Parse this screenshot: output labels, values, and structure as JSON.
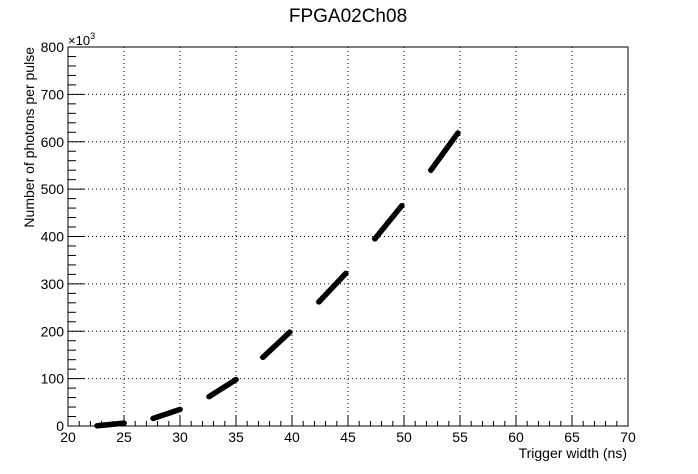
{
  "chart_data": {
    "type": "scatter",
    "title": "FPGA02Ch08",
    "xlabel": "Trigger width (ns)",
    "ylabel": "Number of photons per pulse",
    "y_multiplier_label": "×10",
    "y_multiplier_exp": "3",
    "xlim": [
      20,
      70
    ],
    "ylim": [
      0,
      800
    ],
    "x_ticks": [
      20,
      25,
      30,
      35,
      40,
      45,
      50,
      55,
      60,
      65,
      70
    ],
    "y_ticks": [
      0,
      100,
      200,
      300,
      400,
      500,
      600,
      700,
      800
    ],
    "grid": true,
    "segments": [
      {
        "x_start": 22.6,
        "x_end": 25.0,
        "y_start": 0.5,
        "y_end": 6
      },
      {
        "x_start": 27.6,
        "x_end": 30.0,
        "y_start": 16,
        "y_end": 35
      },
      {
        "x_start": 32.6,
        "x_end": 35.0,
        "y_start": 62,
        "y_end": 98
      },
      {
        "x_start": 37.4,
        "x_end": 39.8,
        "y_start": 145,
        "y_end": 198
      },
      {
        "x_start": 42.4,
        "x_end": 44.8,
        "y_start": 262,
        "y_end": 322
      },
      {
        "x_start": 47.4,
        "x_end": 49.8,
        "y_start": 395,
        "y_end": 465
      },
      {
        "x_start": 52.4,
        "x_end": 54.8,
        "y_start": 540,
        "y_end": 618
      }
    ],
    "points_per_segment": 25
  }
}
